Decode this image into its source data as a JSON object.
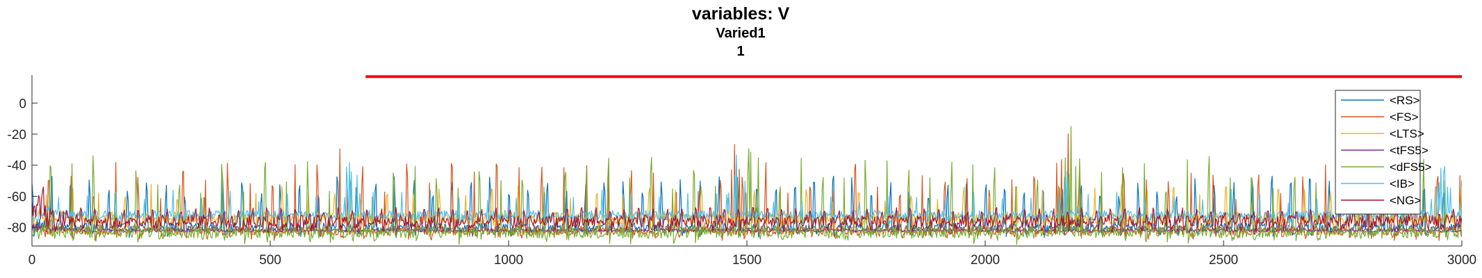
{
  "chart_data": {
    "type": "line",
    "title": "variables: V",
    "subtitle_lines": [
      "Varied1",
      "1"
    ],
    "xlabel": "",
    "ylabel": "",
    "xlim": [
      0,
      3000
    ],
    "ylim": [
      -92,
      18
    ],
    "x_ticks": [
      0,
      500,
      1000,
      1500,
      2000,
      2500,
      3000
    ],
    "y_ticks": [
      0,
      -20,
      -40,
      -60,
      -80
    ],
    "grid": false,
    "legend_placement": "right",
    "series": [
      {
        "name": "<RS>",
        "color": "#0072BD",
        "baseline": -80,
        "noise": 3,
        "spike_period": 40,
        "spike_height": 30,
        "bursts": []
      },
      {
        "name": "<FS>",
        "color": "#D95319",
        "baseline": -82,
        "noise": 3,
        "spike_period": 47,
        "spike_height": 40,
        "bursts": [
          [
            650,
            -12
          ],
          [
            1480,
            -8
          ],
          [
            2170,
            -6
          ]
        ]
      },
      {
        "name": "<LTS>",
        "color": "#EDB120",
        "baseline": -74,
        "noise": 4,
        "spike_period": 55,
        "spike_height": 20,
        "bursts": []
      },
      {
        "name": "<tFS5>",
        "color": "#7E2F8E",
        "baseline": -82,
        "noise": 1,
        "spike_period": 0,
        "spike_height": 0,
        "bursts": []
      },
      {
        "name": "<dFS5>",
        "color": "#77AC30",
        "baseline": -83,
        "noise": 4,
        "spike_period": 45,
        "spike_height": 45,
        "bursts": [
          [
            1500,
            -10
          ],
          [
            2180,
            -2
          ]
        ]
      },
      {
        "name": "<IB>",
        "color": "#4DBEEE",
        "baseline": -72,
        "noise": 3,
        "spike_period": 60,
        "spike_height": 15,
        "bursts": [
          [
            670,
            -25
          ],
          [
            1480,
            -20
          ],
          [
            2170,
            -25
          ],
          [
            2960,
            -20
          ]
        ]
      },
      {
        "name": "<NG>",
        "color": "#A2142F",
        "baseline": -76,
        "noise": 4,
        "spike_period": 30,
        "spike_height": 8,
        "bursts": [
          [
            20,
            -50
          ]
        ]
      }
    ],
    "annotation_line": {
      "color": "#FF0000",
      "x_range": [
        700,
        3000
      ],
      "y": 17
    }
  }
}
